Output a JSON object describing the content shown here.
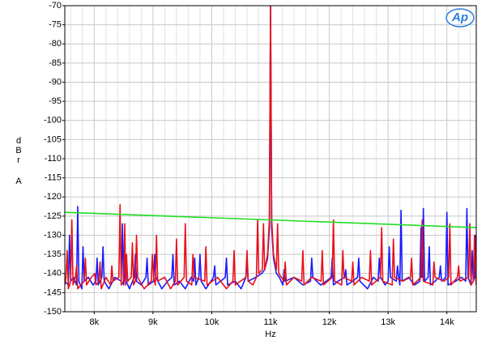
{
  "chart_data": {
    "type": "line",
    "xlabel": "Hz",
    "ylabel": [
      "dBr",
      "A"
    ],
    "logo": "Ap",
    "xlim": [
      7500,
      14500
    ],
    "ylim": [
      -150,
      -70
    ],
    "xticks": [
      {
        "value": 8000,
        "label": "8k"
      },
      {
        "value": 9000,
        "label": "9k"
      },
      {
        "value": 10000,
        "label": "10k"
      },
      {
        "value": 11000,
        "label": "11k"
      },
      {
        "value": 12000,
        "label": "12k"
      },
      {
        "value": 13000,
        "label": "13k"
      },
      {
        "value": 14000,
        "label": "14k"
      }
    ],
    "x_minor_ticks": [
      7600,
      7800,
      8200,
      8400,
      8600,
      8800,
      9200,
      9400,
      9600,
      9800,
      10200,
      10400,
      10600,
      10800,
      11200,
      11400,
      11600,
      11800,
      12200,
      12400,
      12600,
      12800,
      13200,
      13400,
      13600,
      13800,
      14200,
      14400
    ],
    "yticks": [
      -150,
      -145,
      -140,
      -135,
      -130,
      -125,
      -120,
      -115,
      -110,
      -105,
      -100,
      -95,
      -90,
      -85,
      -80,
      -75,
      -70
    ],
    "grid": true,
    "series": [
      {
        "color": "#1a1aff",
        "x": [
          7500,
          7560,
          7580,
          7600,
          7650,
          7700,
          7720,
          7740,
          7790,
          7810,
          7830,
          7900,
          7980,
          8030,
          8050,
          8070,
          8130,
          8150,
          8170,
          8250,
          8350,
          8460,
          8480,
          8500,
          8515,
          8530,
          8545,
          8600,
          8680,
          8700,
          8720,
          8800,
          8880,
          8900,
          8920,
          9010,
          9030,
          9050,
          9150,
          9250,
          9320,
          9340,
          9360,
          9450,
          9550,
          9650,
          9690,
          9710,
          9730,
          9780,
          9800,
          9820,
          9900,
          10030,
          10050,
          10070,
          10150,
          10230,
          10250,
          10270,
          10400,
          10500,
          10580,
          10600,
          10620,
          10750,
          10850,
          10900,
          10950,
          10980,
          11000,
          11020,
          11050,
          11100,
          11150,
          11210,
          11230,
          11250,
          11400,
          11550,
          11680,
          11700,
          11720,
          11850,
          11950,
          12030,
          12050,
          12070,
          12150,
          12260,
          12280,
          12300,
          12400,
          12480,
          12500,
          12520,
          12650,
          12750,
          12830,
          12850,
          12870,
          12950,
          13000,
          13020,
          13040,
          13140,
          13160,
          13180,
          13200,
          13220,
          13240,
          13350,
          13450,
          13540,
          13560,
          13580,
          13600,
          13620,
          13680,
          13700,
          13720,
          13800,
          13870,
          13890,
          13910,
          13980,
          14000,
          14020,
          14150,
          14250,
          14320,
          14340,
          14360,
          14410,
          14430,
          14450,
          14470,
          14490,
          14500
        ],
        "values": [
          -142,
          -143,
          -130,
          -142,
          -141,
          -143,
          -122.5,
          -142,
          -144,
          -133,
          -142,
          -141,
          -143,
          -142,
          -136,
          -143,
          -141,
          -133,
          -142,
          -144,
          -141,
          -142,
          -127,
          -143,
          -141,
          -135,
          -142,
          -144,
          -141,
          -135,
          -142,
          -143,
          -141,
          -136,
          -143,
          -142,
          -135,
          -141,
          -144,
          -142,
          -141,
          -135,
          -143,
          -142,
          -144,
          -141,
          -142,
          -136,
          -143,
          -141,
          -135,
          -142,
          -144,
          -141,
          -138,
          -143,
          -142,
          -141,
          -136,
          -143,
          -142,
          -144,
          -141,
          -137,
          -142,
          -141,
          -140,
          -139,
          -136,
          -128,
          -70,
          -128,
          -136,
          -140,
          -141,
          -143,
          -139,
          -142,
          -141,
          -143,
          -142,
          -136,
          -141,
          -143,
          -142,
          -141,
          -136,
          -143,
          -142,
          -141,
          -139,
          -143,
          -142,
          -141,
          -136,
          -142,
          -144,
          -141,
          -142,
          -136,
          -141,
          -143,
          -142,
          -133,
          -141,
          -142,
          -138,
          -141,
          -143,
          -123.5,
          -142,
          -141,
          -143,
          -142,
          -128,
          -141,
          -123,
          -142,
          -141,
          -133,
          -143,
          -142,
          -141,
          -138,
          -142,
          -141,
          -124,
          -143,
          -142,
          -141,
          -142,
          -123,
          -141,
          -143,
          -134,
          -142,
          -141,
          -130,
          -142
        ]
      },
      {
        "color": "#e8101a",
        "x": [
          7500,
          7520,
          7540,
          7560,
          7600,
          7620,
          7640,
          7680,
          7700,
          7720,
          7830,
          7850,
          7870,
          7950,
          8010,
          8030,
          8080,
          8100,
          8120,
          8200,
          8280,
          8300,
          8320,
          8420,
          8440,
          8460,
          8500,
          8520,
          8535,
          8550,
          8570,
          8630,
          8650,
          8670,
          8700,
          8720,
          8740,
          8850,
          8970,
          8990,
          9010,
          9040,
          9060,
          9080,
          9200,
          9300,
          9380,
          9400,
          9420,
          9530,
          9550,
          9570,
          9660,
          9680,
          9700,
          9880,
          9900,
          9920,
          10100,
          10250,
          10360,
          10380,
          10400,
          10580,
          10600,
          10620,
          10700,
          10760,
          10780,
          10800,
          10860,
          10880,
          10900,
          10950,
          10980,
          11000,
          11020,
          11050,
          11100,
          11120,
          11140,
          11230,
          11250,
          11270,
          11400,
          11530,
          11550,
          11570,
          11700,
          11860,
          11880,
          11900,
          12050,
          12070,
          12090,
          12210,
          12230,
          12250,
          12380,
          12400,
          12420,
          12550,
          12680,
          12700,
          12720,
          12870,
          12890,
          12910,
          13070,
          13090,
          13110,
          13250,
          13380,
          13400,
          13420,
          13560,
          13580,
          13600,
          13760,
          13780,
          13800,
          13950,
          14030,
          14050,
          14070,
          14180,
          14200,
          14220,
          14370,
          14390,
          14410,
          14450,
          14470,
          14490,
          14500
        ],
        "values": [
          -143,
          -141,
          -134,
          -144,
          -142,
          -126,
          -143,
          -141,
          -138,
          -144,
          -142,
          -136,
          -143,
          -141,
          -140,
          -143,
          -142,
          -137,
          -144,
          -141,
          -143,
          -138,
          -142,
          -141,
          -122,
          -143,
          -142,
          -127,
          -143,
          -135,
          -142,
          -141,
          -132,
          -143,
          -142,
          -130,
          -141,
          -144,
          -142,
          -135,
          -141,
          -143,
          -130,
          -142,
          -141,
          -144,
          -142,
          -131,
          -143,
          -141,
          -127,
          -142,
          -143,
          -135,
          -141,
          -142,
          -133,
          -143,
          -141,
          -144,
          -142,
          -134,
          -143,
          -141,
          -134,
          -142,
          -143,
          -141,
          -126,
          -140,
          -139,
          -127,
          -139,
          -135,
          -126,
          -70,
          -126,
          -135,
          -139,
          -127,
          -140,
          -142,
          -137,
          -143,
          -141,
          -142,
          -134,
          -143,
          -141,
          -142,
          -134,
          -143,
          -141,
          -126,
          -142,
          -143,
          -134,
          -141,
          -142,
          -137,
          -143,
          -141,
          -142,
          -134,
          -143,
          -141,
          -128,
          -142,
          -143,
          -131,
          -141,
          -142,
          -141,
          -136,
          -143,
          -141,
          -126,
          -142,
          -143,
          -137,
          -141,
          -142,
          -141,
          -127,
          -143,
          -141,
          -138,
          -142,
          -141,
          -127,
          -143,
          -142,
          -130,
          -141,
          -143
        ]
      },
      {
        "color": "#22dd22",
        "x": [
          7500,
          14500
        ],
        "values": [
          -124,
          -128
        ]
      }
    ]
  }
}
